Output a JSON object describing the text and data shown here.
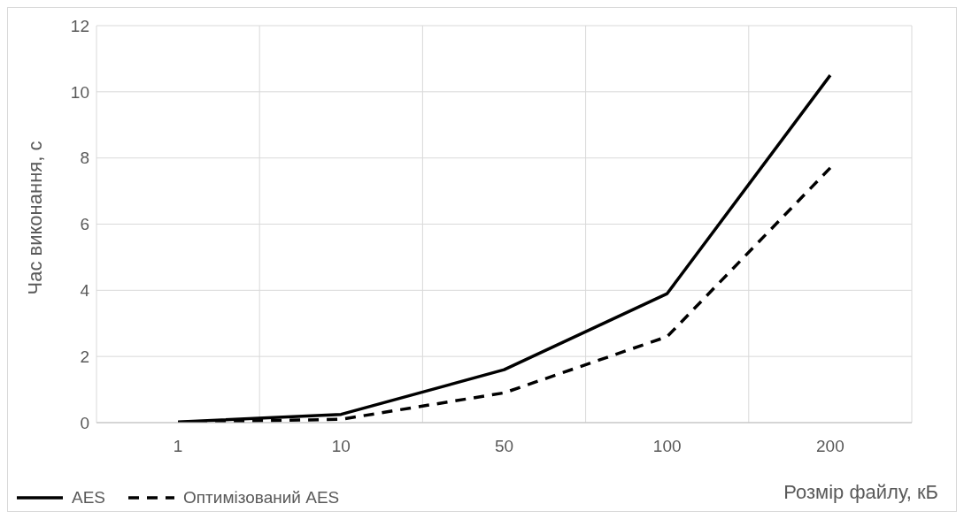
{
  "chart_data": {
    "type": "line",
    "xlabel": "Розмір файлу, кБ",
    "ylabel": "Час виконання, с",
    "categories": [
      "1",
      "10",
      "50",
      "100",
      "200"
    ],
    "series": [
      {
        "name": "AES",
        "color": "#000000",
        "values": [
          0.02,
          0.25,
          1.6,
          3.9,
          10.5
        ],
        "line_style": "solid"
      },
      {
        "name": "Оптимізований AES",
        "color": "#000000",
        "values": [
          0.01,
          0.1,
          0.9,
          2.6,
          7.7
        ],
        "line_style": "dashed"
      }
    ],
    "ylim": [
      0,
      12
    ],
    "yticks": [
      0,
      2,
      4,
      6,
      8,
      10,
      12
    ],
    "grid": true,
    "legend": "bottom left",
    "marker": "none"
  }
}
